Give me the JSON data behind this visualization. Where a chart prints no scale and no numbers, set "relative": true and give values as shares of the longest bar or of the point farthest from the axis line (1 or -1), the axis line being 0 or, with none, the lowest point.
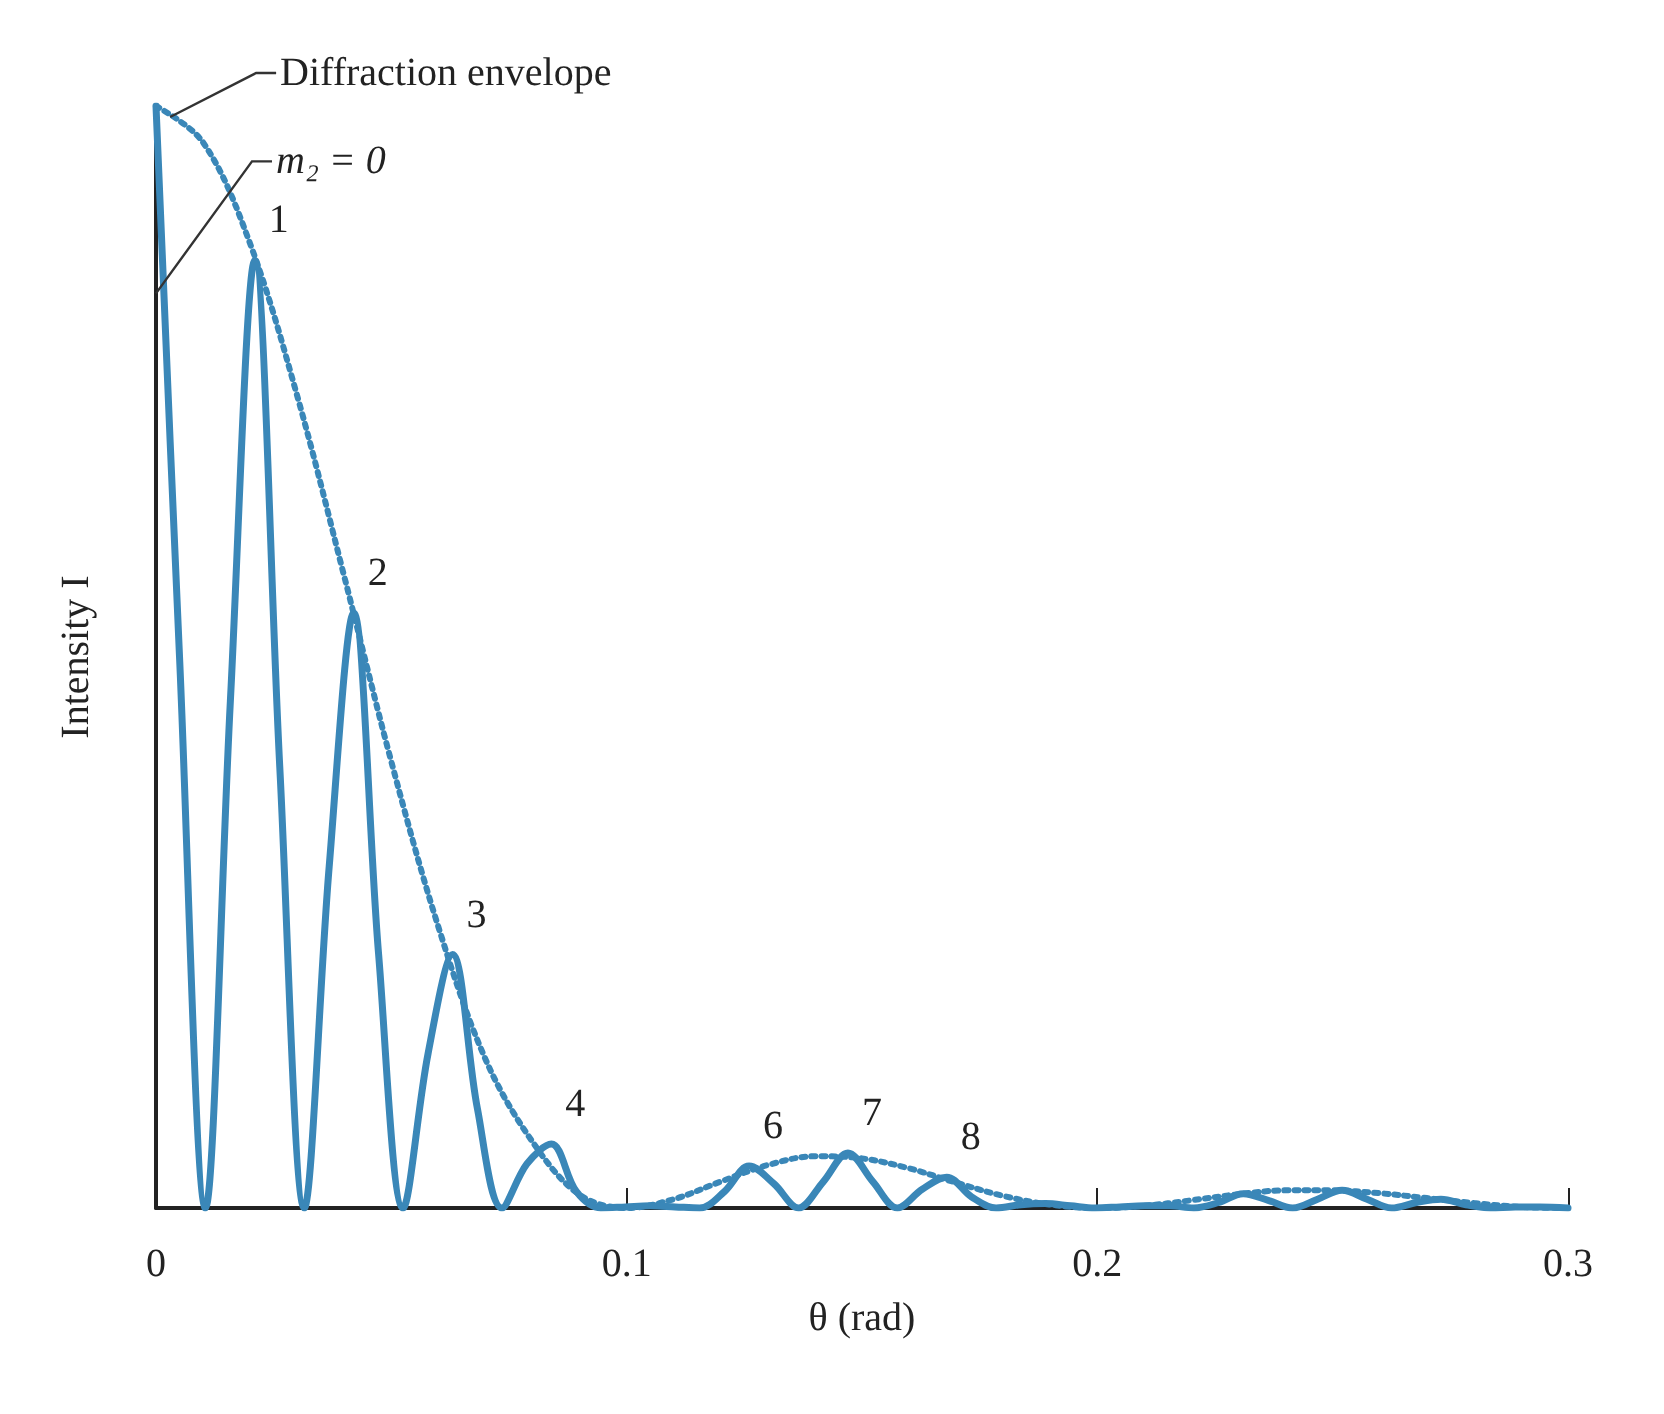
{
  "chart_data": {
    "type": "line",
    "relative": true,
    "xlabel": "θ (rad)",
    "ylabel": "Intensity I",
    "xlim": [
      0,
      0.3
    ],
    "xticks": [
      0,
      0.1,
      0.2,
      0.3
    ],
    "grid": false,
    "marker": "none",
    "series": [
      {
        "color": "#3a87b8",
        "line_style": "solid",
        "x": [
          0,
          0.005,
          0.0105,
          0.0158,
          0.021,
          0.0263,
          0.0315,
          0.0368,
          0.042,
          0.0473,
          0.0525,
          0.0578,
          0.063,
          0.0683,
          0.0735,
          0.0788,
          0.084,
          0.0893,
          0.0945,
          0.0998,
          0.105,
          0.1103,
          0.1155,
          0.1208,
          0.126,
          0.1313,
          0.1365,
          0.1418,
          0.147,
          0.1523,
          0.1575,
          0.1628,
          0.168,
          0.1733,
          0.1785,
          0.1838,
          0.189,
          0.1943,
          0.1995,
          0.2048,
          0.21,
          0.2153,
          0.2205,
          0.2258,
          0.231,
          0.2363,
          0.2415,
          0.2468,
          0.252,
          0.2573,
          0.2625,
          0.2678,
          0.273,
          0.2783,
          0.2835,
          0.2888,
          0.294,
          0.3
        ],
        "values": [
          1,
          0.5,
          0,
          0.46,
          0.86,
          0.4,
          0,
          0.31,
          0.54,
          0.23,
          0,
          0.14,
          0.23,
          0.09,
          0,
          0.04,
          0.058,
          0.015,
          0,
          0.001,
          0.002,
          0.001,
          0,
          0.015,
          0.038,
          0.022,
          0,
          0.024,
          0.05,
          0.024,
          0,
          0.017,
          0.028,
          0.01,
          0,
          0.003,
          0.004,
          0.002,
          0,
          0.001,
          0.002,
          0.002,
          0,
          0.005,
          0.013,
          0.007,
          0,
          0.008,
          0.016,
          0.008,
          0,
          0.005,
          0.008,
          0.003,
          0,
          0.001,
          0.001,
          0
        ]
      },
      {
        "color": "#3a87b8",
        "line_style": "dotted",
        "x": [
          0,
          0.01,
          0.02,
          0.03,
          0.04,
          0.05,
          0.06,
          0.07,
          0.08,
          0.09,
          0.1,
          0.11,
          0.12,
          0.13,
          0.14,
          0.15,
          0.16,
          0.17,
          0.18,
          0.19,
          0.2,
          0.21,
          0.22,
          0.23,
          0.24,
          0.25,
          0.26,
          0.27,
          0.28,
          0.29,
          0.3
        ],
        "values": [
          1,
          0.967,
          0.875,
          0.737,
          0.573,
          0.405,
          0.255,
          0.135,
          0.06,
          0.012,
          0,
          0.008,
          0.024,
          0.039,
          0.047,
          0.045,
          0.036,
          0.023,
          0.011,
          0.003,
          0,
          0.002,
          0.007,
          0.0125,
          0.016,
          0.016,
          0.0134,
          0.009,
          0.0045,
          0.001,
          0
        ]
      }
    ],
    "annotations": [
      {
        "text": "Diffraction envelope",
        "x": 0.003,
        "y": 0.99
      },
      {
        "text": "m₂ = 0",
        "x": 0,
        "y": 0.83
      },
      {
        "text": "1",
        "x": 0.021,
        "y": 0.86
      },
      {
        "text": "2",
        "x": 0.042,
        "y": 0.54
      },
      {
        "text": "3",
        "x": 0.063,
        "y": 0.23
      },
      {
        "text": "4",
        "x": 0.084,
        "y": 0.058
      },
      {
        "text": "6",
        "x": 0.126,
        "y": 0.038
      },
      {
        "text": "7",
        "x": 0.147,
        "y": 0.05
      },
      {
        "text": "8",
        "x": 0.168,
        "y": 0.028
      }
    ]
  }
}
